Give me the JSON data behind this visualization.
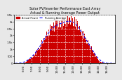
{
  "title": "Solar PV/Inverter Performance East Array\nActual & Running Average Power Output",
  "title_fontsize": 3.5,
  "bg_color": "#e8e8e8",
  "plot_bg_color": "#ffffff",
  "bar_color": "#cc0000",
  "bar_edge_color": "#cc0000",
  "line_color": "#0000ff",
  "ylabel": "W",
  "ylabel_fontsize": 3.5,
  "xlabel_fontsize": 3.0,
  "tick_fontsize": 2.8,
  "ylim": [
    0,
    3500
  ],
  "yticks": [
    0,
    500,
    1000,
    1500,
    2000,
    2500,
    3000,
    3500
  ],
  "ytick_labels": [
    "0",
    "500",
    "1k",
    "1.5k",
    "2k",
    "2.5k",
    "3k",
    "3.5k"
  ],
  "num_bars": 120,
  "bar_data": [
    0,
    0,
    0,
    0,
    0,
    0,
    0,
    0,
    0,
    0,
    20,
    40,
    80,
    120,
    160,
    200,
    250,
    300,
    350,
    380,
    420,
    480,
    550,
    620,
    700,
    780,
    860,
    950,
    1050,
    1150,
    1250,
    1350,
    1450,
    1550,
    1650,
    1750,
    1850,
    1950,
    2050,
    2150,
    2250,
    2350,
    2450,
    2500,
    2550,
    2600,
    2650,
    2700,
    2720,
    2740,
    2760,
    2780,
    2800,
    2820,
    2840,
    2860,
    2880,
    2900,
    2920,
    2940,
    2960,
    2980,
    3000,
    3020,
    3040,
    3060,
    3080,
    3100,
    3120,
    3100,
    3050,
    3000,
    2950,
    2900,
    2800,
    2700,
    2600,
    2500,
    2400,
    2300,
    2200,
    2100,
    2000,
    1900,
    1800,
    1700,
    1600,
    1500,
    1400,
    1300,
    1200,
    1100,
    1000,
    900,
    800,
    700,
    600,
    500,
    400,
    300,
    200,
    150,
    100,
    80,
    60,
    40,
    20,
    10,
    5,
    0,
    0,
    0,
    0,
    0,
    0,
    0,
    0,
    0,
    0,
    0
  ],
  "noise_pattern": [
    1.0,
    1.0,
    1.0,
    1.0,
    1.0,
    1.0,
    1.0,
    1.0,
    1.0,
    1.0,
    0.9,
    1.1,
    0.95,
    1.05,
    0.92,
    1.08,
    0.97,
    1.03,
    0.88,
    1.12,
    1.15,
    0.85,
    1.1,
    0.9,
    1.2,
    0.8,
    1.1,
    0.95,
    1.05,
    0.9,
    1.1,
    0.85,
    1.15,
    0.9,
    1.1,
    0.95,
    1.05,
    0.88,
    1.12,
    0.92,
    1.08,
    0.87,
    1.13,
    0.95,
    1.05,
    0.9,
    1.1,
    0.85,
    1.0,
    1.15,
    0.88,
    1.12,
    0.93,
    1.07,
    0.9,
    1.1,
    0.85,
    1.15,
    0.92,
    1.08,
    0.95,
    1.05,
    0.88,
    1.12,
    0.93,
    1.07,
    0.9,
    1.1,
    0.95,
    1.05,
    0.88,
    1.12,
    0.9,
    1.1,
    0.87,
    1.13,
    0.92,
    1.08,
    0.95,
    1.05,
    0.9,
    1.1,
    0.88,
    1.12,
    0.93,
    1.07,
    0.9,
    1.1,
    0.95,
    1.05,
    0.88,
    1.12,
    0.93,
    1.07,
    0.9,
    1.1,
    0.95,
    1.05,
    0.92,
    1.08,
    1.05,
    0.95,
    1.1,
    0.9,
    1.05,
    0.95,
    1.1,
    0.9,
    1.0,
    1.0,
    1.0,
    1.0,
    1.0,
    1.0,
    1.0,
    1.0,
    1.0,
    1.0,
    1.0,
    1.0
  ],
  "xtick_positions": [
    10,
    20,
    30,
    40,
    50,
    60,
    70,
    80,
    90,
    100,
    110
  ],
  "xtick_labels": [
    "6:00",
    "7:00",
    "8:00",
    "9:00",
    "10:00",
    "11:00",
    "12:00",
    "13:00",
    "14:00",
    "15:00",
    "16:00"
  ],
  "legend_labels": [
    "Actual Power",
    "Running Average"
  ],
  "legend_colors": [
    "#cc0000",
    "#0000ff"
  ],
  "grid_color": "#ffffff",
  "grid_style": "--",
  "grid_alpha": 0.8
}
